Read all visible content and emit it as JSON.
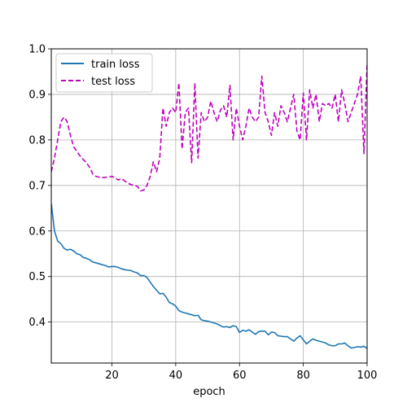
{
  "chart_data": {
    "type": "line",
    "xlabel": "epoch",
    "ylabel": "",
    "xlim": [
      1,
      100
    ],
    "ylim": [
      0.31,
      1.0
    ],
    "xticks": [
      20,
      40,
      60,
      80,
      100
    ],
    "yticks": [
      0.4,
      0.5,
      0.6,
      0.7,
      0.8,
      0.9,
      1.0
    ],
    "grid": true,
    "legend_position": "upper-left",
    "series": [
      {
        "name": "train loss",
        "color": "#1f77b4",
        "linestyle": "solid",
        "x": [
          1,
          2,
          3,
          4,
          5,
          6,
          7,
          8,
          9,
          10,
          11,
          12,
          13,
          14,
          15,
          16,
          17,
          18,
          19,
          20,
          21,
          22,
          23,
          24,
          25,
          26,
          27,
          28,
          29,
          30,
          31,
          32,
          33,
          34,
          35,
          36,
          37,
          38,
          39,
          40,
          41,
          42,
          43,
          44,
          45,
          46,
          47,
          48,
          49,
          50,
          51,
          52,
          53,
          54,
          55,
          56,
          57,
          58,
          59,
          60,
          61,
          62,
          63,
          64,
          65,
          66,
          67,
          68,
          69,
          70,
          71,
          72,
          73,
          74,
          75,
          76,
          77,
          78,
          79,
          80,
          81,
          82,
          83,
          84,
          85,
          86,
          87,
          88,
          89,
          90,
          91,
          92,
          93,
          94,
          95,
          96,
          97,
          98,
          99,
          100
        ],
        "values": [
          0.66,
          0.6,
          0.578,
          0.572,
          0.562,
          0.558,
          0.56,
          0.556,
          0.55,
          0.548,
          0.542,
          0.54,
          0.537,
          0.532,
          0.53,
          0.528,
          0.526,
          0.524,
          0.521,
          0.522,
          0.522,
          0.52,
          0.517,
          0.515,
          0.514,
          0.513,
          0.51,
          0.508,
          0.502,
          0.502,
          0.498,
          0.488,
          0.478,
          0.47,
          0.462,
          0.463,
          0.455,
          0.443,
          0.44,
          0.435,
          0.425,
          0.422,
          0.42,
          0.418,
          0.416,
          0.414,
          0.415,
          0.405,
          0.403,
          0.402,
          0.4,
          0.398,
          0.396,
          0.392,
          0.389,
          0.39,
          0.388,
          0.392,
          0.39,
          0.377,
          0.382,
          0.38,
          0.383,
          0.378,
          0.373,
          0.379,
          0.38,
          0.38,
          0.372,
          0.378,
          0.377,
          0.37,
          0.369,
          0.368,
          0.368,
          0.363,
          0.358,
          0.365,
          0.37,
          0.361,
          0.352,
          0.358,
          0.363,
          0.36,
          0.358,
          0.356,
          0.354,
          0.35,
          0.348,
          0.348,
          0.352,
          0.352,
          0.354,
          0.348,
          0.343,
          0.344,
          0.346,
          0.345,
          0.347,
          0.342
        ]
      },
      {
        "name": "test loss",
        "color": "#bf00bf",
        "linestyle": "dashed",
        "x": [
          1,
          2,
          3,
          4,
          5,
          6,
          7,
          8,
          9,
          10,
          11,
          12,
          13,
          14,
          15,
          16,
          17,
          18,
          19,
          20,
          21,
          22,
          23,
          24,
          25,
          26,
          27,
          28,
          29,
          30,
          31,
          32,
          33,
          34,
          35,
          36,
          37,
          38,
          39,
          40,
          41,
          42,
          43,
          44,
          45,
          46,
          47,
          48,
          49,
          50,
          51,
          52,
          53,
          54,
          55,
          56,
          57,
          58,
          59,
          60,
          61,
          62,
          63,
          64,
          65,
          66,
          67,
          68,
          69,
          70,
          71,
          72,
          73,
          74,
          75,
          76,
          77,
          78,
          79,
          80,
          81,
          82,
          83,
          84,
          85,
          86,
          87,
          88,
          89,
          90,
          91,
          92,
          93,
          94,
          95,
          96,
          97,
          98,
          99,
          100
        ],
        "values": [
          0.73,
          0.76,
          0.8,
          0.84,
          0.85,
          0.84,
          0.81,
          0.785,
          0.775,
          0.765,
          0.757,
          0.75,
          0.74,
          0.725,
          0.72,
          0.718,
          0.717,
          0.718,
          0.718,
          0.72,
          0.717,
          0.712,
          0.715,
          0.71,
          0.705,
          0.702,
          0.7,
          0.698,
          0.688,
          0.69,
          0.7,
          0.72,
          0.752,
          0.73,
          0.76,
          0.87,
          0.83,
          0.86,
          0.87,
          0.86,
          0.925,
          0.78,
          0.86,
          0.87,
          0.75,
          0.925,
          0.76,
          0.86,
          0.84,
          0.85,
          0.885,
          0.86,
          0.84,
          0.865,
          0.875,
          0.85,
          0.92,
          0.8,
          0.87,
          0.83,
          0.8,
          0.83,
          0.87,
          0.85,
          0.84,
          0.85,
          0.94,
          0.86,
          0.84,
          0.81,
          0.86,
          0.83,
          0.875,
          0.86,
          0.84,
          0.87,
          0.9,
          0.82,
          0.8,
          0.903,
          0.8,
          0.91,
          0.87,
          0.9,
          0.84,
          0.88,
          0.875,
          0.88,
          0.87,
          0.9,
          0.84,
          0.91,
          0.88,
          0.84,
          0.86,
          0.88,
          0.9,
          0.94,
          0.77,
          0.97
        ]
      }
    ]
  }
}
